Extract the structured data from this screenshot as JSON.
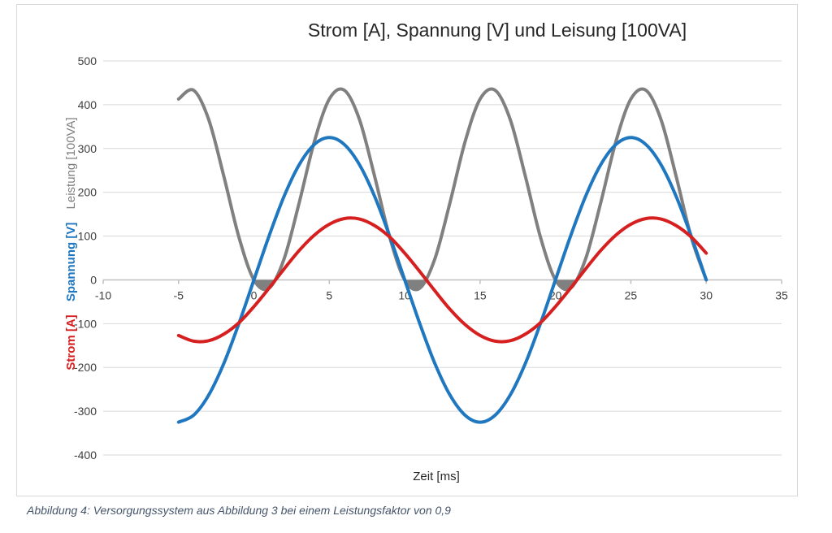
{
  "chart_data": {
    "type": "line",
    "title": "Strom [A], Spannung [V] und Leisung [100VA]",
    "xlabel": "Zeit [ms]",
    "ylabels": [
      {
        "text": "Strom [A]",
        "color": "#d62020"
      },
      {
        "text": "Spannung [V]",
        "color": "#1f77c0"
      },
      {
        "text": "Leistung [100VA]",
        "color": "#7f7f7f"
      }
    ],
    "xlim": [
      -10,
      35
    ],
    "ylim": [
      -400,
      500
    ],
    "xticks": [
      -10,
      -5,
      0,
      5,
      10,
      15,
      20,
      25,
      30,
      35
    ],
    "yticks": [
      500,
      400,
      300,
      200,
      100,
      0,
      -100,
      -200,
      -300,
      -400
    ],
    "grid": "horizontal",
    "x": [
      -5,
      -4,
      -3,
      -2,
      -1,
      0,
      1,
      2,
      3,
      4,
      5,
      6,
      7,
      8,
      9,
      10,
      11,
      12,
      13,
      14,
      15,
      16,
      17,
      18,
      19,
      20,
      21,
      22,
      23,
      24,
      25,
      26,
      27,
      28,
      29,
      30
    ],
    "series": [
      {
        "name": "Strom [A]",
        "color": "#d62020",
        "values": [
          -127,
          -140,
          -139,
          -124,
          -98,
          -61,
          -19,
          25,
          67,
          102,
          127,
          140,
          139,
          124,
          98,
          61,
          19,
          -25,
          -67,
          -102,
          -127,
          -140,
          -139,
          -124,
          -98,
          -61,
          -19,
          25,
          67,
          102,
          127,
          140,
          139,
          124,
          98,
          61
        ]
      },
      {
        "name": "Spannung [V]",
        "color": "#1f77c0",
        "values": [
          -325,
          -309,
          -263,
          -191,
          -100,
          0,
          100,
          191,
          263,
          309,
          325,
          309,
          263,
          191,
          100,
          0,
          -100,
          -191,
          -263,
          -309,
          -325,
          -309,
          -263,
          -191,
          -100,
          0,
          100,
          191,
          263,
          309,
          325,
          309,
          263,
          191,
          100,
          0
        ]
      },
      {
        "name": "Leistung [100VA]",
        "color": "#808080",
        "values": [
          413,
          433,
          366,
          237,
          98,
          0,
          -19,
          48,
          176,
          315,
          413,
          433,
          366,
          237,
          98,
          0,
          -19,
          48,
          176,
          315,
          413,
          433,
          366,
          237,
          98,
          0,
          -19,
          48,
          176,
          315,
          413,
          433,
          366,
          237,
          98,
          0
        ]
      }
    ]
  },
  "caption": "Abbildung 4: Versorgungssystem aus Abbildung 3 bei einem Leistungsfaktor von 0,9"
}
